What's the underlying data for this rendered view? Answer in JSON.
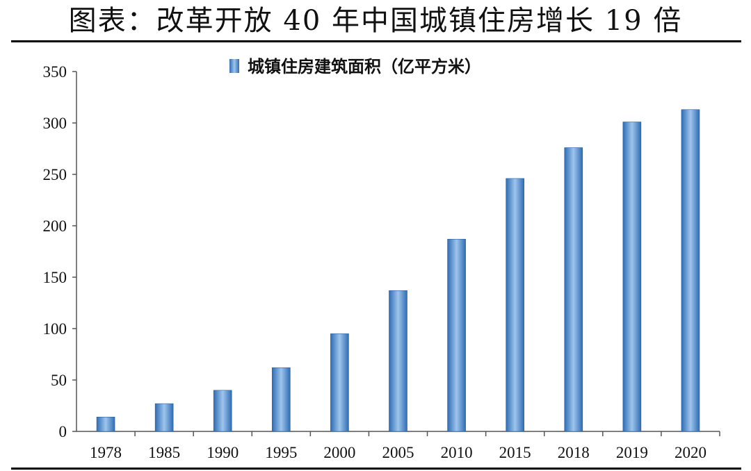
{
  "title": "图表：改革开放 40 年中国城镇住房增长 19 倍",
  "chart_data": {
    "type": "bar",
    "categories": [
      "1978",
      "1985",
      "1990",
      "1995",
      "2000",
      "2005",
      "2010",
      "2015",
      "2018",
      "2019",
      "2020"
    ],
    "series": [
      {
        "name": "城镇住房建筑面积（亿平方米）",
        "values": [
          14,
          27,
          40,
          62,
          95,
          137,
          187,
          246,
          276,
          301,
          313
        ]
      }
    ],
    "ylim": [
      0,
      350
    ],
    "yticks": [
      0,
      50,
      100,
      150,
      200,
      250,
      300,
      350
    ],
    "xlabel": "",
    "ylabel": "",
    "legend_position": "top-center",
    "grid": false,
    "colors": {
      "bar_dark": "#2f6db4",
      "bar_light": "#9ec5ec",
      "axis": "#555555"
    }
  }
}
